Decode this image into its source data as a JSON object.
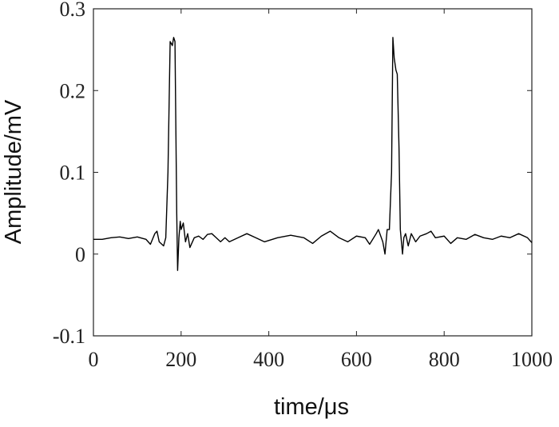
{
  "chart_data": {
    "type": "line",
    "xlabel": "time/μs",
    "ylabel": "Amplitude/mV",
    "x": [
      0,
      20,
      40,
      60,
      80,
      100,
      120,
      130,
      140,
      145,
      150,
      160,
      165,
      170,
      175,
      180,
      183,
      186,
      190,
      192,
      195,
      198,
      200,
      205,
      210,
      215,
      220,
      230,
      240,
      250,
      260,
      270,
      280,
      290,
      300,
      310,
      330,
      350,
      370,
      390,
      420,
      450,
      480,
      500,
      520,
      540,
      560,
      580,
      600,
      620,
      630,
      645,
      650,
      660,
      665,
      670,
      675,
      680,
      683,
      686,
      690,
      693,
      697,
      700,
      705,
      708,
      712,
      718,
      725,
      735,
      745,
      760,
      770,
      780,
      800,
      815,
      830,
      850,
      870,
      890,
      910,
      930,
      950,
      970,
      990,
      1000
    ],
    "values": [
      0.018,
      0.018,
      0.02,
      0.021,
      0.019,
      0.021,
      0.018,
      0.012,
      0.025,
      0.028,
      0.015,
      0.01,
      0.02,
      0.1,
      0.26,
      0.255,
      0.265,
      0.26,
      0.05,
      -0.02,
      0.02,
      0.04,
      0.03,
      0.038,
      0.015,
      0.025,
      0.008,
      0.02,
      0.022,
      0.018,
      0.024,
      0.025,
      0.02,
      0.015,
      0.02,
      0.015,
      0.02,
      0.025,
      0.02,
      0.015,
      0.02,
      0.023,
      0.02,
      0.013,
      0.022,
      0.028,
      0.02,
      0.015,
      0.022,
      0.02,
      0.012,
      0.025,
      0.03,
      0.015,
      0.0,
      0.03,
      0.03,
      0.1,
      0.265,
      0.24,
      0.225,
      0.22,
      0.13,
      0.03,
      0.0,
      0.02,
      0.025,
      0.01,
      0.025,
      0.015,
      0.022,
      0.025,
      0.028,
      0.02,
      0.022,
      0.013,
      0.02,
      0.018,
      0.024,
      0.02,
      0.018,
      0.022,
      0.02,
      0.025,
      0.02,
      0.014
    ],
    "color": "#000000",
    "xlim": [
      0,
      1000
    ],
    "xticks": [
      0,
      200,
      400,
      600,
      800,
      1000
    ],
    "ylim": [
      -0.1,
      0.3
    ],
    "yticks": [
      -0.1,
      0,
      0.1,
      0.2,
      0.3
    ]
  }
}
